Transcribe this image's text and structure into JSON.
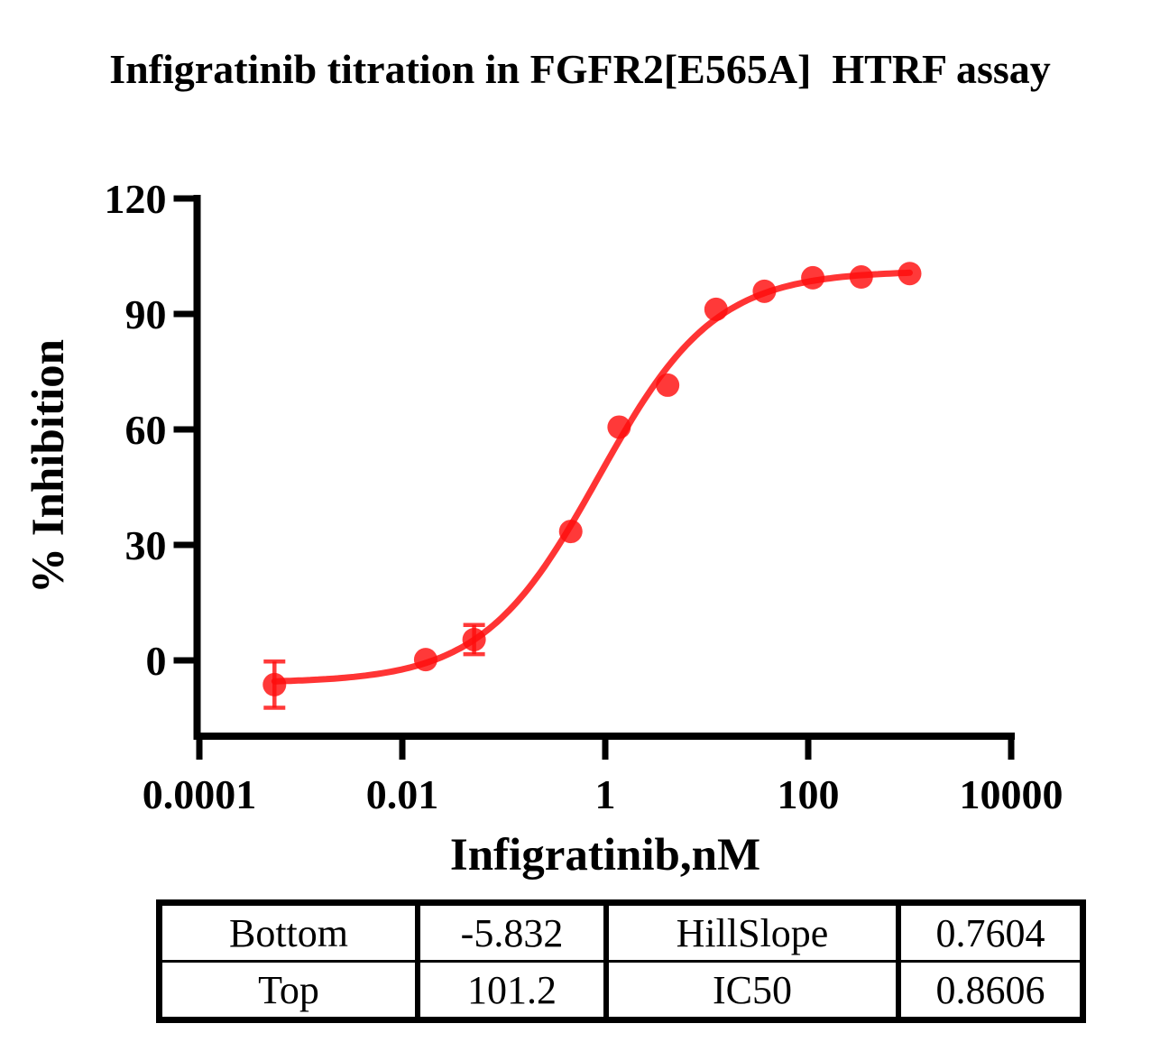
{
  "title": "Infigratinib titration in FGFR2[E565A]  HTRF assay",
  "chart_data": {
    "type": "scatter",
    "title": "Infigratinib titration in FGFR2[E565A]  HTRF assay",
    "xlabel": "Infigratinib,nM",
    "ylabel": "% Inhibition",
    "x_scale": "log10",
    "xlim": [
      0.0001,
      10000
    ],
    "ylim": [
      -20,
      120
    ],
    "x_ticks": [
      "0.0001",
      "0.01",
      "1",
      "100",
      "10000"
    ],
    "y_ticks": [
      "0",
      "30",
      "60",
      "90",
      "120"
    ],
    "grid": false,
    "legend": "none",
    "series_color": "#FF0D0D",
    "series": [
      {
        "name": "Infigratinib",
        "marker": "circle",
        "points": [
          {
            "conc_nM": 0.00055,
            "pct_inhibition": -6.3,
            "error": 6.0
          },
          {
            "conc_nM": 0.017,
            "pct_inhibition": 0.2
          },
          {
            "conc_nM": 0.051,
            "pct_inhibition": 5.4,
            "error": 3.8
          },
          {
            "conc_nM": 0.457,
            "pct_inhibition": 33.5
          },
          {
            "conc_nM": 1.37,
            "pct_inhibition": 60.6
          },
          {
            "conc_nM": 4.12,
            "pct_inhibition": 71.5
          },
          {
            "conc_nM": 12.35,
            "pct_inhibition": 91.2
          },
          {
            "conc_nM": 37.0,
            "pct_inhibition": 95.9
          },
          {
            "conc_nM": 111.0,
            "pct_inhibition": 99.4
          },
          {
            "conc_nM": 333.0,
            "pct_inhibition": 99.6
          },
          {
            "conc_nM": 1000.0,
            "pct_inhibition": 100.5
          }
        ]
      }
    ],
    "fit_curve": {
      "model": "log(inhibitor) vs response, four parameters",
      "bottom": -5.832,
      "top": 101.2,
      "ic50": 0.8606,
      "hillslope": 0.7604
    }
  },
  "params_table": {
    "rows": [
      [
        "Bottom",
        "-5.832",
        "HillSlope",
        "0.7604"
      ],
      [
        "Top",
        "101.2",
        "IC50",
        "0.8606"
      ]
    ]
  }
}
